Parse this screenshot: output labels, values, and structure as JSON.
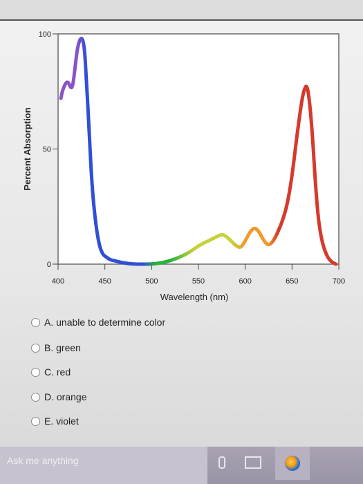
{
  "chart_data": {
    "type": "line",
    "ylabel": "Percent Absorption",
    "xlabel": "Wavelength (nm)",
    "xlim": [
      400,
      700
    ],
    "ylim": [
      0,
      100
    ],
    "x_ticks": [
      "400",
      "450",
      "500",
      "550",
      "600",
      "650",
      "700"
    ],
    "y_ticks": [
      "0",
      "50",
      "100"
    ],
    "grid": false,
    "series": [
      {
        "x": [
          403,
          405,
          410,
          414,
          416,
          418,
          421,
          425,
          428,
          430,
          433,
          436,
          440,
          444,
          448,
          452,
          455,
          460,
          470,
          480,
          490,
          500,
          510,
          520,
          530,
          540,
          550,
          560,
          570,
          575,
          580,
          585,
          590,
          595,
          600,
          605,
          610,
          615,
          620,
          625,
          630,
          635,
          640,
          645,
          650,
          655,
          660,
          663,
          666,
          669,
          672,
          675,
          678,
          681,
          684,
          688,
          692,
          697
        ],
        "y": [
          72,
          76,
          80,
          76,
          78,
          85,
          95,
          99,
          95,
          82,
          60,
          35,
          18,
          8,
          4,
          3,
          2,
          1.5,
          0.5,
          0,
          0,
          0,
          0.5,
          1.5,
          3,
          5,
          8,
          10,
          12,
          13,
          12,
          10,
          8,
          7,
          10,
          14,
          16,
          14,
          10,
          8,
          10,
          14,
          19,
          26,
          38,
          55,
          70,
          76,
          78,
          70,
          55,
          35,
          20,
          12,
          7,
          3,
          1,
          0
        ],
        "colors": [
          "#8a54c8",
          "#2f4fd6",
          "#27b33a",
          "#c7d13a",
          "#f09a2a",
          "#d53a2b"
        ]
      }
    ]
  },
  "question_options": [
    "A. unable to determine color",
    "B. green",
    "C. red",
    "D. orange",
    "E. violet"
  ],
  "taskbar": {
    "search_placeholder": "Ask me anything"
  },
  "icons": {
    "mic": "microphone-icon",
    "taskview": "task-view-icon",
    "browser": "browser-icon"
  }
}
